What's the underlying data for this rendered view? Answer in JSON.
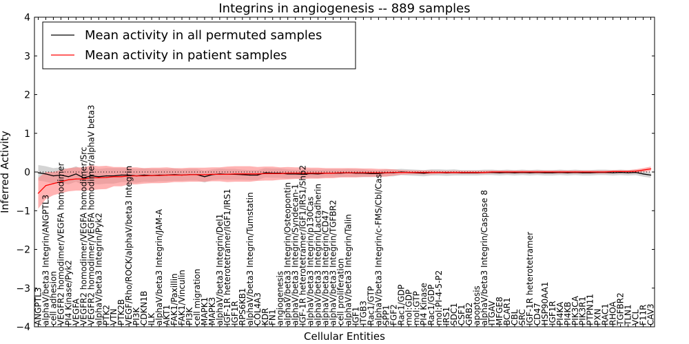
{
  "chart_data": {
    "type": "line",
    "title": "Integrins in angiogenesis -- 889 samples",
    "xlabel": "Cellular Entities",
    "ylabel": "Inferred Activity",
    "ylim": [
      -4,
      4
    ],
    "yticks": [
      "−4",
      "−3",
      "−2",
      "−1",
      "0",
      "1",
      "2",
      "3",
      "4"
    ],
    "grid": false,
    "legend_position": "top-left",
    "categories": [
      "ANGPTL3",
      "alphaV/beta3 Integrin/ANGPTL3",
      "cell adhesion",
      "VEGFR2 homodimer/VEGFA homodimer",
      "PI4 Kinase/Pyk2",
      "VEGFA",
      "VEGFR2 homodimer/VEGFA homodimer/Src",
      "VEGFR2 homodimer/VEGFA homodimer/alphaV beta3",
      "alphaV/beta3 Integrin/Pyk2",
      "PTK2",
      "VTN",
      "PTK2B",
      "VEGF/Rho/ROCK/alphaV/beta3 Integrin",
      "PI3K",
      "CDKN1B",
      "ILK",
      "alphaV/beta3 Integrin/JAM-A",
      "AKT1",
      "FAK1/Paxillin",
      "FAK1/Vinculin",
      "PI3K",
      "cell migration",
      "MAPK1",
      "MAPK3",
      "alphaV/beta3 Integrin/Del1",
      "IGF-1R heterotetramer/IGF1/IRS1",
      "IGF1R",
      "RPS6KB1",
      "alphaV/beta3 Integrin/Tumstatin",
      "COL4A3",
      "KDR",
      "FN1",
      "angiogenesis",
      "alphaV/beta3 Integrin/Osteopontin",
      "alphaV/beta3 Integrin/Syndecan-1",
      "IGF-1R heterotetramer/IGF1/IRS1/Shp2",
      "alphaV/beta3 Integrin/p130Cas",
      "alphaV/beta3 Integrin/Lactadherin",
      "alphaV/beta3 Integrin/CD47",
      "alphaV/beta3 Integrin/TGFBR2",
      "cell proliferation",
      "alphaV/beta3 Integrin/Talin",
      "IGF1",
      "ITGB3",
      "Rac1/GTP",
      "alphaV/beta3 Integrin/c-FMS/Cbl/Cas",
      "SPP1",
      "FGF2",
      "Rac1/GDP",
      "mol:GDP",
      "mol:GTP",
      "PI4 Kinase",
      "Rac1/GDP",
      "mol:PI-4-5-P2",
      "IRS1",
      "SDC1",
      "CSF1",
      "GRB2",
      "apoptosis",
      "alphaV/beta3 Integrin/Caspase 8",
      "ITGAV",
      "MFGE8",
      "BCAR1",
      "CBL",
      "SRC",
      "IGF-1R heterotetramer",
      "CD47",
      "HSP90AA1",
      "IGF1R",
      "PI4KA",
      "PI4KB",
      "PIK3CA",
      "PIK3R1",
      "PTPN11",
      "PXN",
      "RAC1",
      "RHOA",
      "TGFBR2",
      "TLN1",
      "VCL",
      "F11R",
      "CAV3"
    ],
    "series": [
      {
        "name": "Mean activity in all permuted samples",
        "color": "#000000",
        "band_color": "#b0b0b0",
        "values": [
          -0.02,
          -0.05,
          -0.1,
          -0.08,
          -0.12,
          -0.05,
          -0.15,
          -0.1,
          -0.12,
          -0.1,
          -0.1,
          -0.08,
          -0.08,
          -0.1,
          -0.08,
          -0.09,
          -0.08,
          -0.08,
          -0.07,
          -0.08,
          -0.07,
          -0.07,
          -0.12,
          -0.07,
          -0.05,
          -0.06,
          -0.06,
          -0.07,
          -0.08,
          -0.08,
          -0.02,
          -0.03,
          -0.03,
          -0.05,
          -0.05,
          -0.06,
          -0.04,
          -0.05,
          -0.03,
          -0.03,
          -0.03,
          -0.02,
          -0.03,
          -0.03,
          -0.04,
          -0.04,
          -0.02,
          -0.02,
          0.0,
          -0.01,
          -0.02,
          -0.03,
          -0.01,
          -0.01,
          -0.02,
          -0.01,
          -0.02,
          -0.02,
          -0.02,
          -0.01,
          -0.01,
          -0.02,
          -0.01,
          -0.02,
          -0.01,
          -0.02,
          -0.01,
          -0.02,
          -0.02,
          -0.01,
          -0.02,
          -0.01,
          -0.02,
          -0.02,
          -0.01,
          -0.01,
          -0.02,
          -0.01,
          -0.02,
          -0.01,
          -0.05,
          -0.08
        ],
        "band": [
          0.2,
          0.2,
          0.2,
          0.2,
          0.2,
          0.2,
          0.2,
          0.2,
          0.2,
          0.2,
          0.2,
          0.18,
          0.18,
          0.18,
          0.17,
          0.17,
          0.16,
          0.16,
          0.16,
          0.15,
          0.15,
          0.15,
          0.15,
          0.14,
          0.14,
          0.14,
          0.14,
          0.13,
          0.13,
          0.13,
          0.12,
          0.12,
          0.12,
          0.12,
          0.11,
          0.11,
          0.11,
          0.11,
          0.1,
          0.1,
          0.1,
          0.1,
          0.1,
          0.1,
          0.09,
          0.09,
          0.09,
          0.09,
          0.08,
          0.08,
          0.08,
          0.08,
          0.08,
          0.08,
          0.08,
          0.08,
          0.07,
          0.07,
          0.07,
          0.07,
          0.07,
          0.07,
          0.07,
          0.07,
          0.07,
          0.07,
          0.07,
          0.07,
          0.07,
          0.07,
          0.07,
          0.07,
          0.07,
          0.07,
          0.07,
          0.07,
          0.07,
          0.07,
          0.07,
          0.07,
          0.07,
          0.07
        ]
      },
      {
        "name": "Mean activity in patient samples",
        "color": "#ff0000",
        "band_color": "#ff8080",
        "values": [
          -0.55,
          -0.35,
          -0.3,
          -0.25,
          -0.2,
          -0.18,
          -0.18,
          -0.15,
          -0.15,
          -0.14,
          -0.12,
          -0.12,
          -0.1,
          -0.1,
          -0.1,
          -0.09,
          -0.09,
          -0.08,
          -0.08,
          -0.08,
          -0.07,
          -0.07,
          -0.07,
          -0.06,
          -0.06,
          -0.06,
          -0.05,
          -0.05,
          -0.05,
          -0.05,
          -0.04,
          -0.04,
          -0.04,
          -0.03,
          -0.03,
          -0.03,
          -0.03,
          -0.03,
          -0.03,
          -0.03,
          -0.02,
          -0.02,
          -0.02,
          -0.02,
          -0.02,
          -0.02,
          -0.02,
          -0.01,
          -0.01,
          -0.01,
          -0.01,
          -0.01,
          -0.01,
          -0.01,
          -0.01,
          -0.01,
          -0.01,
          -0.01,
          -0.01,
          -0.01,
          0.0,
          0.0,
          0.0,
          0.0,
          0.0,
          0.0,
          0.0,
          0.0,
          0.0,
          0.0,
          0.0,
          0.0,
          0.0,
          0.0,
          0.0,
          0.0,
          0.01,
          0.01,
          0.01,
          0.02,
          0.05,
          0.08
        ],
        "band": [
          0.4,
          0.35,
          0.3,
          0.3,
          0.3,
          0.3,
          0.3,
          0.32,
          0.3,
          0.3,
          0.25,
          0.25,
          0.22,
          0.22,
          0.2,
          0.2,
          0.2,
          0.2,
          0.18,
          0.18,
          0.18,
          0.18,
          0.18,
          0.18,
          0.18,
          0.2,
          0.2,
          0.2,
          0.2,
          0.18,
          0.18,
          0.18,
          0.16,
          0.16,
          0.15,
          0.15,
          0.14,
          0.14,
          0.13,
          0.13,
          0.12,
          0.12,
          0.12,
          0.11,
          0.11,
          0.1,
          0.1,
          0.08,
          0.06,
          0.05,
          0.05,
          0.05,
          0.05,
          0.04,
          0.04,
          0.04,
          0.04,
          0.04,
          0.04,
          0.04,
          0.04,
          0.04,
          0.04,
          0.04,
          0.04,
          0.04,
          0.04,
          0.04,
          0.04,
          0.04,
          0.04,
          0.04,
          0.04,
          0.04,
          0.04,
          0.04,
          0.04,
          0.04,
          0.04,
          0.05,
          0.05,
          0.06
        ]
      }
    ]
  }
}
